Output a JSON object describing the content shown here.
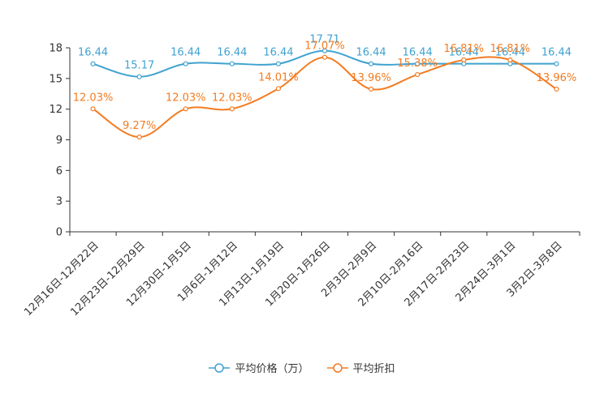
{
  "chart_data": {
    "type": "line",
    "title": "",
    "xlabel": "",
    "ylabel": "",
    "ylim": [
      0,
      18
    ],
    "yticks": [
      0,
      3,
      6,
      9,
      12,
      15,
      18
    ],
    "grid": false,
    "legend_position": "bottom-center",
    "categories": [
      "12月16日-12月22日",
      "12月23日-12月29日",
      "12月30日-1月5日",
      "1月6日-1月12日",
      "1月13日-1月19日",
      "1月20日-1月26日",
      "2月3日-2月9日",
      "2月10日-2月16日",
      "2月17日-2月23日",
      "2月24日-3月1日",
      "3月2日-3月8日"
    ],
    "series": [
      {
        "name": "平均价格（万）",
        "color": "#3fa2d0",
        "values": [
          16.44,
          15.17,
          16.44,
          16.44,
          16.44,
          17.71,
          16.44,
          16.44,
          16.44,
          16.44,
          16.44
        ],
        "labels": [
          "16.44",
          "15.17",
          "16.44",
          "16.44",
          "16.44",
          "17.71",
          "16.44",
          "16.44",
          "16.44",
          "16.44",
          "16.44"
        ]
      },
      {
        "name": "平均折扣",
        "color": "#f47b20",
        "values": [
          12.03,
          9.27,
          12.03,
          12.03,
          14.01,
          17.07,
          13.96,
          15.38,
          16.81,
          16.81,
          13.96
        ],
        "labels": [
          "12.03%",
          "9.27%",
          "12.03%",
          "12.03%",
          "14.01%",
          "17.07%",
          "13.96%",
          "15.38%",
          "16.81%",
          "16.81%",
          "13.96%"
        ]
      }
    ]
  }
}
